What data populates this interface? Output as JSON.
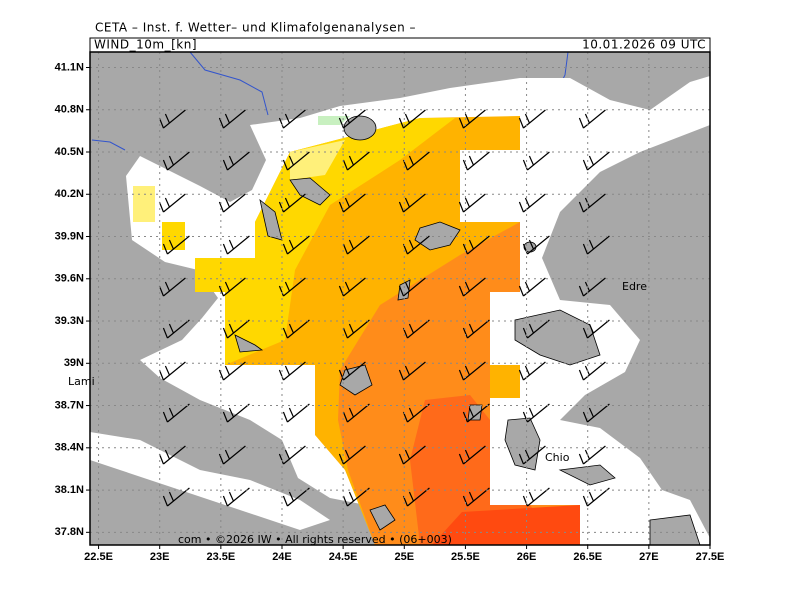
{
  "header": {
    "institute": "CETA – Inst. f. Wetter– und Klimafolgenanalysen –"
  },
  "panel": {
    "variable": "WIND_10m_[kn]",
    "datetime": "10.01.2026 09 UTC"
  },
  "map": {
    "xlim": [
      22.43,
      27.5
    ],
    "ylim": [
      37.71,
      41.21
    ],
    "xticks": [
      {
        "value": 22.5,
        "label": "22.5E"
      },
      {
        "value": 23,
        "label": "23E"
      },
      {
        "value": 23.5,
        "label": "23.5E"
      },
      {
        "value": 24,
        "label": "24E"
      },
      {
        "value": 24.5,
        "label": "24.5E"
      },
      {
        "value": 25,
        "label": "25E"
      },
      {
        "value": 25.5,
        "label": "25.5E"
      },
      {
        "value": 26,
        "label": "26E"
      },
      {
        "value": 26.5,
        "label": "26.5E"
      },
      {
        "value": 27,
        "label": "27E"
      },
      {
        "value": 27.5,
        "label": "27.5E"
      }
    ],
    "yticks": [
      {
        "value": 41.1,
        "label": "41.1N"
      },
      {
        "value": 40.8,
        "label": "40.8N"
      },
      {
        "value": 40.5,
        "label": "40.5N"
      },
      {
        "value": 40.2,
        "label": "40.2N"
      },
      {
        "value": 39.9,
        "label": "39.9N"
      },
      {
        "value": 39.6,
        "label": "39.6N"
      },
      {
        "value": 39.3,
        "label": "39.3N"
      },
      {
        "value": 39,
        "label": "39N"
      },
      {
        "value": 38.7,
        "label": "38.7N"
      },
      {
        "value": 38.4,
        "label": "38.4N"
      },
      {
        "value": 38.1,
        "label": "38.1N"
      },
      {
        "value": 37.8,
        "label": "37.8N"
      }
    ],
    "places": [
      "Lami",
      "Edre",
      "Chio"
    ],
    "footer": "com • ©2026 IW • All rights reserved • (06+003)"
  }
}
